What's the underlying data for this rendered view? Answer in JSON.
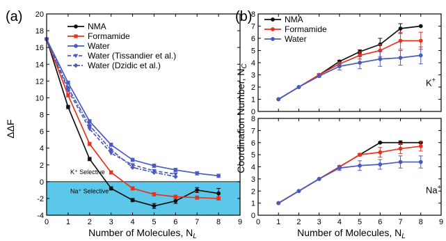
{
  "chart_data": [
    {
      "type": "line",
      "panel_label": "(a)",
      "xlabel": "Number of Molecules, N",
      "xlabel_sub": "L",
      "ylabel": "ΔΔF",
      "xlim": [
        0,
        9
      ],
      "ylim": [
        -4,
        20
      ],
      "xticks": [
        0,
        1,
        2,
        3,
        4,
        5,
        6,
        7,
        8,
        9
      ],
      "yticks": [
        -4,
        -2,
        0,
        2,
        4,
        6,
        8,
        10,
        12,
        14,
        16,
        18,
        20
      ],
      "shaded_region": {
        "y_from": -4,
        "y_to": 0,
        "color": "#5bc8ea"
      },
      "annotations": {
        "k_selective": "K⁺ Selective",
        "na_selective": "Na⁺ Selective"
      },
      "legend_position": "top-right",
      "series": [
        {
          "name": "NMA",
          "color": "#111111",
          "marker": "circle",
          "dash": "solid",
          "x": [
            0,
            1,
            2,
            3,
            4,
            5,
            6,
            7,
            8
          ],
          "y": [
            17.0,
            8.9,
            2.7,
            -0.8,
            -2.2,
            -2.9,
            -2.3,
            -1.0,
            -1.4
          ],
          "err": [
            0,
            0.2,
            0.2,
            0.2,
            0.2,
            0.3,
            0.3,
            0.3,
            0.6
          ]
        },
        {
          "name": "Formamide",
          "color": "#e8321e",
          "marker": "square",
          "dash": "solid",
          "x": [
            0,
            1,
            2,
            3,
            4,
            5,
            6,
            7,
            8
          ],
          "y": [
            17.0,
            10.3,
            4.5,
            1.1,
            -0.8,
            -1.5,
            -1.8,
            -1.9,
            -2.0
          ],
          "err": [
            0,
            0.2,
            0.2,
            0.2,
            0.2,
            0.2,
            0.2,
            0.2,
            0.2
          ]
        },
        {
          "name": "Water",
          "color": "#4a5bbf",
          "marker": "circle",
          "dash": "solid",
          "x": [
            0,
            1,
            2,
            3,
            4,
            5,
            6,
            7,
            8
          ],
          "y": [
            17.0,
            11.8,
            7.2,
            4.4,
            2.6,
            1.9,
            1.4,
            1.0,
            0.7
          ],
          "err": [
            0,
            0.2,
            0.2,
            0.2,
            0.2,
            0.2,
            0.2,
            0.2,
            0.2
          ]
        },
        {
          "name": "Water (Tissandier et al.)",
          "color": "#4a5bbf",
          "marker": "triangle-down",
          "dash": "dash",
          "x": [
            0,
            1,
            2,
            3,
            4,
            5,
            6
          ],
          "y": [
            17.0,
            10.9,
            6.3,
            3.4,
            2.0,
            1.3,
            0.9
          ]
        },
        {
          "name": "Water (Dzidic et al.)",
          "color": "#4a5bbf",
          "marker": "diamond",
          "dash": "dashdot",
          "x": [
            0,
            1,
            2,
            3,
            4,
            5,
            6
          ],
          "y": [
            17.0,
            11.2,
            6.7,
            3.8,
            1.7,
            1.1,
            0.6
          ]
        }
      ]
    },
    {
      "type": "line",
      "panel_label": "(b)",
      "ylabel": "Coordination Number, N",
      "ylabel_sub": "C",
      "xlim": [
        0,
        9
      ],
      "xticks": [
        0,
        1,
        2,
        3,
        4,
        5,
        6,
        7,
        8,
        9
      ],
      "legend_position": "top-left",
      "subplots": [
        {
          "ion_label": "K",
          "ion_charge": "+",
          "ylim": [
            0,
            8
          ],
          "yticks": [
            0,
            1,
            2,
            3,
            4,
            5,
            6,
            7,
            8
          ],
          "series": [
            {
              "name": "NMA",
              "color": "#111111",
              "x": [
                1,
                2,
                3,
                4,
                5,
                6,
                7,
                8
              ],
              "y": [
                1.0,
                2.0,
                3.0,
                4.1,
                4.9,
                5.5,
                6.8,
                7.0
              ],
              "err": [
                0,
                0,
                0.1,
                0.1,
                0.15,
                0.5,
                0.4,
                0
              ]
            },
            {
              "name": "Formamide",
              "color": "#e8321e",
              "x": [
                1,
                2,
                3,
                4,
                5,
                6,
                7,
                8
              ],
              "y": [
                1.0,
                2.0,
                3.0,
                3.9,
                4.6,
                5.0,
                5.8,
                5.8
              ],
              "err": [
                0,
                0,
                0.1,
                0.15,
                0.3,
                0.5,
                0.7,
                0.7
              ]
            },
            {
              "name": "Water",
              "color": "#4a5bbf",
              "x": [
                1,
                2,
                3,
                4,
                5,
                6,
                7,
                8
              ],
              "y": [
                1.0,
                2.0,
                2.9,
                3.7,
                4.0,
                4.3,
                4.4,
                4.6
              ],
              "err": [
                0,
                0,
                0.1,
                0.3,
                0.5,
                0.6,
                0.6,
                0.7
              ]
            }
          ]
        },
        {
          "ion_label": "Na",
          "ion_charge": "+",
          "xlabel": "Number of Molecules, N",
          "xlabel_sub": "L",
          "ylim": [
            0,
            8
          ],
          "yticks": [
            0,
            1,
            2,
            3,
            4,
            5,
            6,
            7,
            8
          ],
          "series": [
            {
              "name": "NMA",
              "color": "#111111",
              "x": [
                1,
                2,
                3,
                4,
                5,
                6,
                7,
                8
              ],
              "y": [
                1.0,
                2.0,
                3.0,
                4.0,
                5.0,
                6.0,
                6.0,
                6.0
              ],
              "err": [
                0,
                0,
                0,
                0.1,
                0.1,
                0.05,
                0.15,
                0.05
              ]
            },
            {
              "name": "Formamide",
              "color": "#e8321e",
              "x": [
                1,
                2,
                3,
                4,
                5,
                6,
                7,
                8
              ],
              "y": [
                1.0,
                2.0,
                3.0,
                4.0,
                5.0,
                5.2,
                5.5,
                5.7
              ],
              "err": [
                0,
                0,
                0,
                0.1,
                0.1,
                0.4,
                0.4,
                0.4
              ]
            },
            {
              "name": "Water",
              "color": "#4a5bbf",
              "x": [
                1,
                2,
                3,
                4,
                5,
                6,
                7,
                8
              ],
              "y": [
                1.0,
                2.0,
                3.0,
                3.9,
                4.1,
                4.2,
                4.4,
                4.4
              ],
              "err": [
                0,
                0,
                0,
                0.2,
                0.4,
                0.4,
                0.5,
                0.5
              ]
            }
          ]
        }
      ]
    }
  ]
}
